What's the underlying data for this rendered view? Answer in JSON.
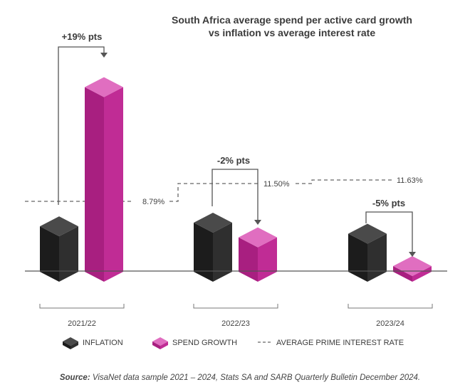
{
  "chart_data": {
    "type": "bar",
    "title_line1": "South Africa average spend per active card growth",
    "title_line2": "vs inflation vs average interest rate",
    "categories": [
      "2021/22",
      "2022/23",
      "2023/24"
    ],
    "series": [
      {
        "name": "INFLATION",
        "color": "#2b2b2b",
        "values": [
          6.2,
          6.7,
          5.2
        ]
      },
      {
        "name": "SPEND GROWTH",
        "color": "#cc2f9e",
        "values": [
          25.2,
          4.7,
          0.2
        ]
      }
    ],
    "annotations": [
      "+19% pts",
      "-2% pts",
      "-5% pts"
    ],
    "prime_rate": {
      "name": "AVERAGE PRIME INTEREST RATE",
      "labels": [
        "8.79%",
        "11.50%",
        "11.63%"
      ],
      "values": [
        8.79,
        11.5,
        11.63
      ]
    },
    "legend_placement": "bottom",
    "grid": false
  },
  "source": {
    "label": "Source:",
    "text": " VisaNet data sample 2021 – 2024, Stats SA and SARB Quarterly Bulletin December 2024."
  }
}
